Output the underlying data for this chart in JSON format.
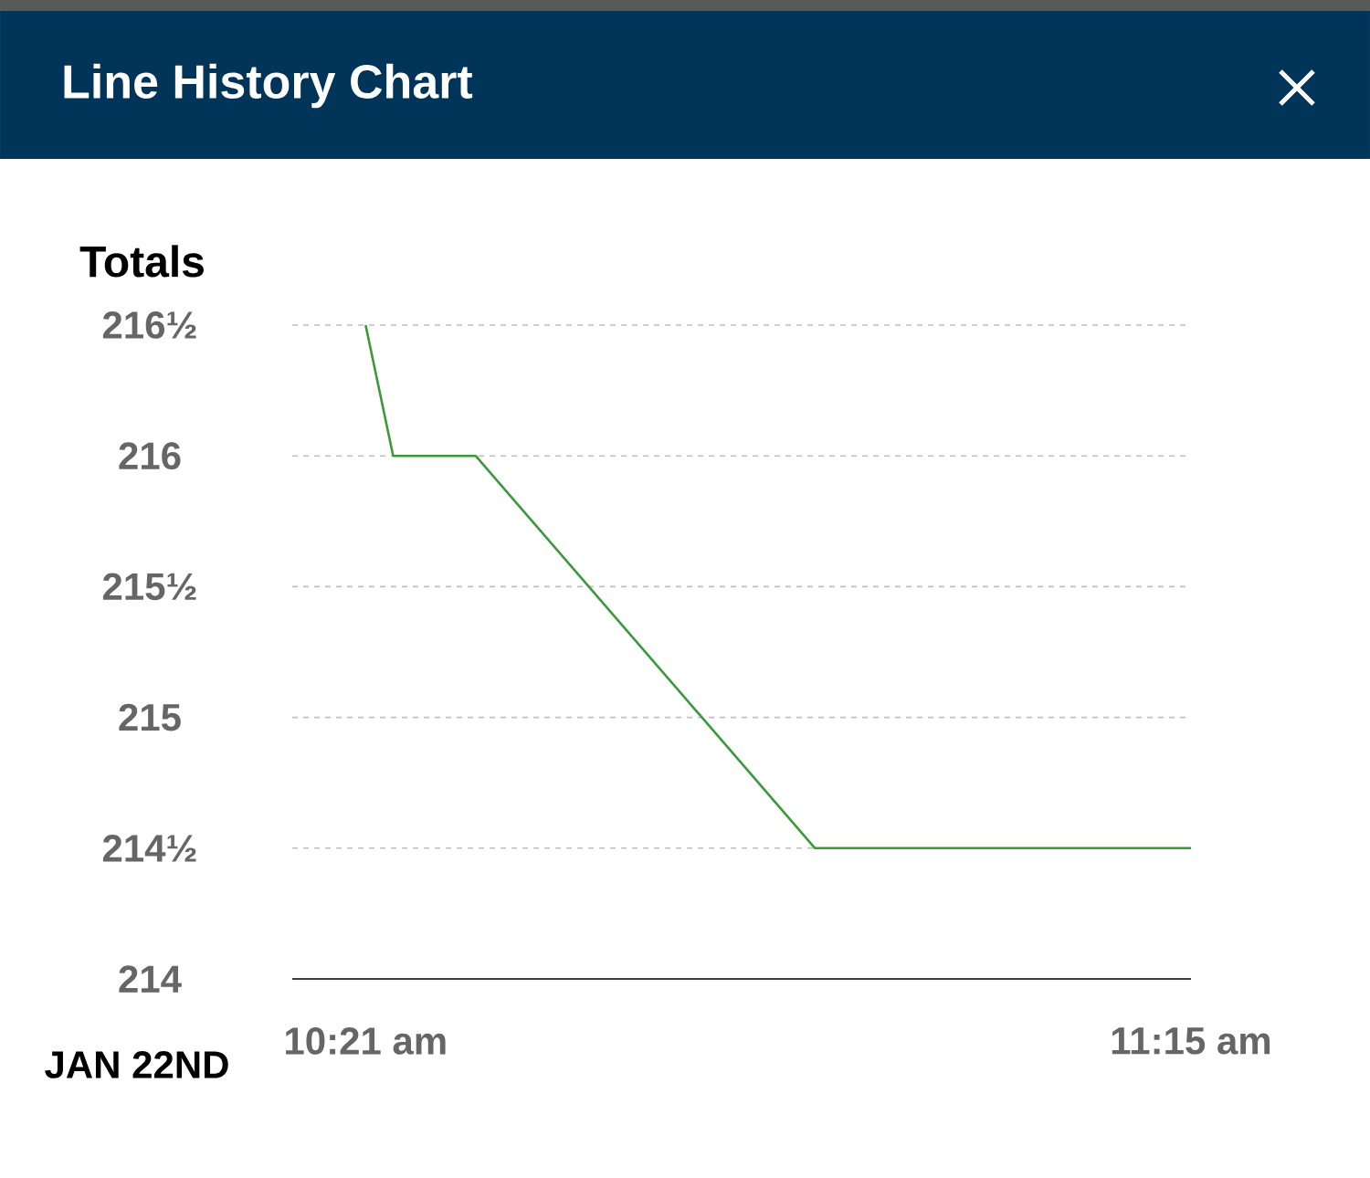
{
  "chart_data": {
    "type": "line",
    "title": "Line History Chart",
    "ylabel": "Totals",
    "x": [
      10.35,
      10.38,
      10.47,
      10.84,
      11.25
    ],
    "values": [
      216.5,
      216,
      216,
      214.5,
      214.5
    ],
    "color": "#3a9a3a",
    "xlim": [
      10.27,
      11.25
    ],
    "xticks": [
      {
        "value": 10.35,
        "label": "10:21 am"
      },
      {
        "value": 11.25,
        "label": "11:15 am"
      }
    ],
    "ylim": [
      214,
      216.5
    ],
    "yticks": [
      {
        "value": 214,
        "label": "214"
      },
      {
        "value": 214.5,
        "label": "214½"
      },
      {
        "value": 215,
        "label": "215"
      },
      {
        "value": 215.5,
        "label": "215½"
      },
      {
        "value": 216,
        "label": "216"
      },
      {
        "value": 216.5,
        "label": "216½"
      }
    ],
    "grid": "y",
    "annotations": [
      "JAN 22ND"
    ]
  }
}
